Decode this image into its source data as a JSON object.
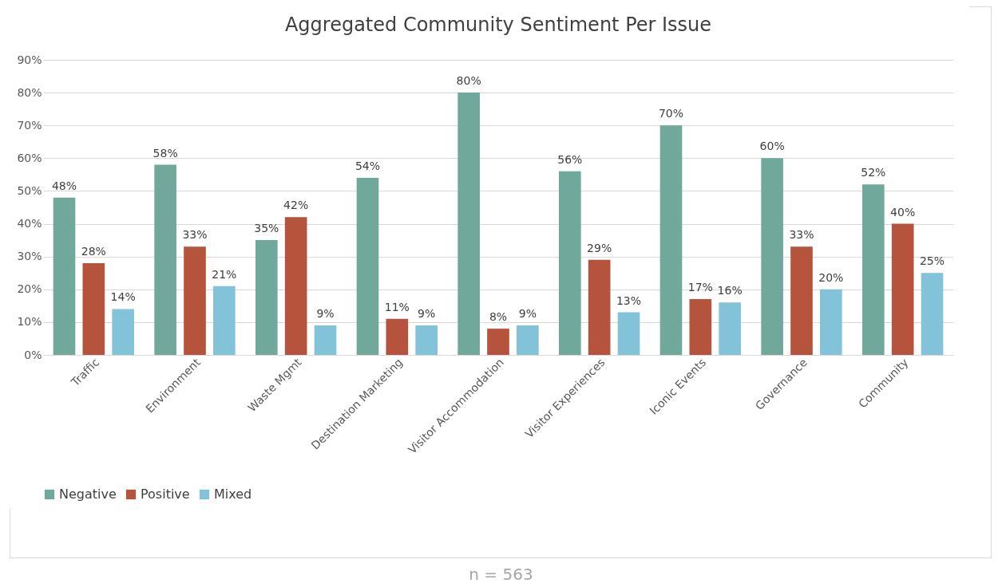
{
  "chart_data": {
    "type": "bar",
    "title": "Aggregated Community Sentiment Per Issue",
    "categories": [
      "Traffic",
      "Environment",
      "Waste Mgmt",
      "Destination Marketing",
      "Visitor Accommodation",
      "Visitor Experiences",
      "Iconic Events",
      "Governance",
      "Community"
    ],
    "series": [
      {
        "name": "Negative",
        "color": "#70a89c",
        "values": [
          48,
          58,
          35,
          54,
          80,
          56,
          70,
          60,
          52
        ],
        "value_labels": [
          "48%",
          "58%",
          "35%",
          "54%",
          "80%",
          "56%",
          "70%",
          "60%",
          "52%"
        ]
      },
      {
        "name": "Positive",
        "color": "#b5533c",
        "values": [
          28,
          33,
          42,
          11,
          8,
          29,
          17,
          33,
          40
        ],
        "value_labels": [
          "28%",
          "33%",
          "42%",
          "11%",
          "8%",
          "29%",
          "17%",
          "33%",
          "40%"
        ]
      },
      {
        "name": "Mixed",
        "color": "#83c3d9",
        "values": [
          14,
          21,
          9,
          9,
          9,
          13,
          16,
          20,
          25
        ],
        "value_labels": [
          "14%",
          "21%",
          "9%",
          "9%",
          "9%",
          "13%",
          "16%",
          "20%",
          "25%"
        ]
      }
    ],
    "ylim": [
      0,
      90
    ],
    "yticks": [
      {
        "value": 0,
        "label": "0%"
      },
      {
        "value": 10,
        "label": "10%"
      },
      {
        "value": 20,
        "label": "20%"
      },
      {
        "value": 30,
        "label": "30%"
      },
      {
        "value": 40,
        "label": "40%"
      },
      {
        "value": 50,
        "label": "50%"
      },
      {
        "value": 60,
        "label": "60%"
      },
      {
        "value": 70,
        "label": "70%"
      },
      {
        "value": 80,
        "label": "80%"
      },
      {
        "value": 90,
        "label": "90%"
      }
    ],
    "grid": "y",
    "legend": "bottom",
    "annotations": [
      "n = 563"
    ]
  }
}
